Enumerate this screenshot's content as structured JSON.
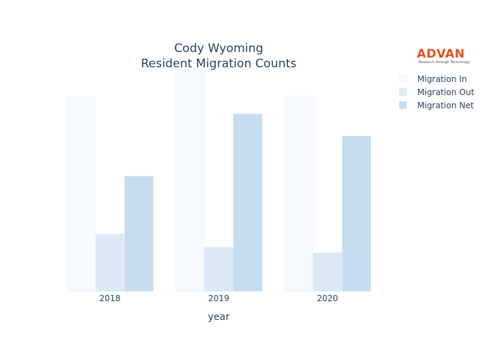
{
  "logo": {
    "name": "ADVAN",
    "tagline": "Research through Technology",
    "color": "#e0521f"
  },
  "chart_data": {
    "type": "bar",
    "title": [
      "Cody Wyoming",
      "Resident Migration Counts"
    ],
    "xlabel": "year",
    "ylabel": "",
    "categories": [
      "2018",
      "2019",
      "2020"
    ],
    "ylim": [
      0,
      1000
    ],
    "grid": false,
    "legend_position": "top-right",
    "series": [
      {
        "name": "Migration In",
        "color": "#f6f9fe",
        "values": [
          875,
          1000,
          880
        ]
      },
      {
        "name": "Migration Out",
        "color": "#dce9f7",
        "values": [
          260,
          200,
          175
        ]
      },
      {
        "name": "Migration Net",
        "color": "#c6dcf0",
        "values": [
          520,
          800,
          700
        ]
      }
    ]
  }
}
